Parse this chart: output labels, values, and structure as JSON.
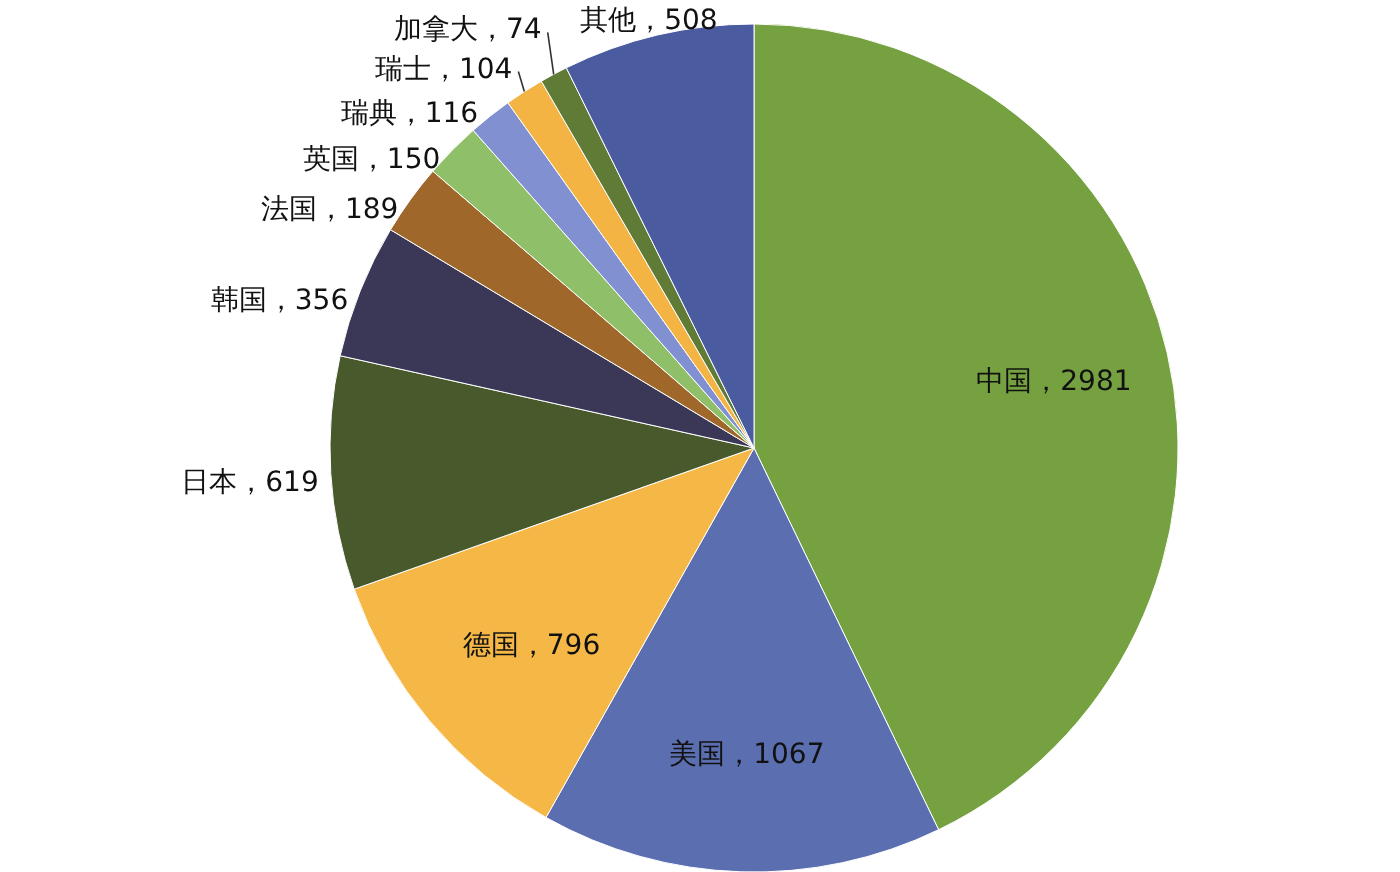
{
  "chart_data": {
    "type": "pie",
    "categories": [
      "中国",
      "美国",
      "德国",
      "日本",
      "韩国",
      "法国",
      "英国",
      "瑞典",
      "瑞士",
      "加拿大",
      "其他"
    ],
    "values": [
      2981,
      1067,
      796,
      619,
      356,
      189,
      150,
      116,
      104,
      74,
      508
    ],
    "colors": [
      "#76a141",
      "#5b6fb0",
      "#f5b746",
      "#485a2c",
      "#3b3757",
      "#a0672b",
      "#8fbf69",
      "#8090d0",
      "#f4b444",
      "#5f7b36",
      "#4b5ba0"
    ],
    "value_labels": [
      "，2981",
      "，1067",
      "，796",
      "，619",
      "，356",
      "，189",
      "，150",
      "，116",
      "，104",
      "，74",
      "，508"
    ],
    "legend": false
  }
}
